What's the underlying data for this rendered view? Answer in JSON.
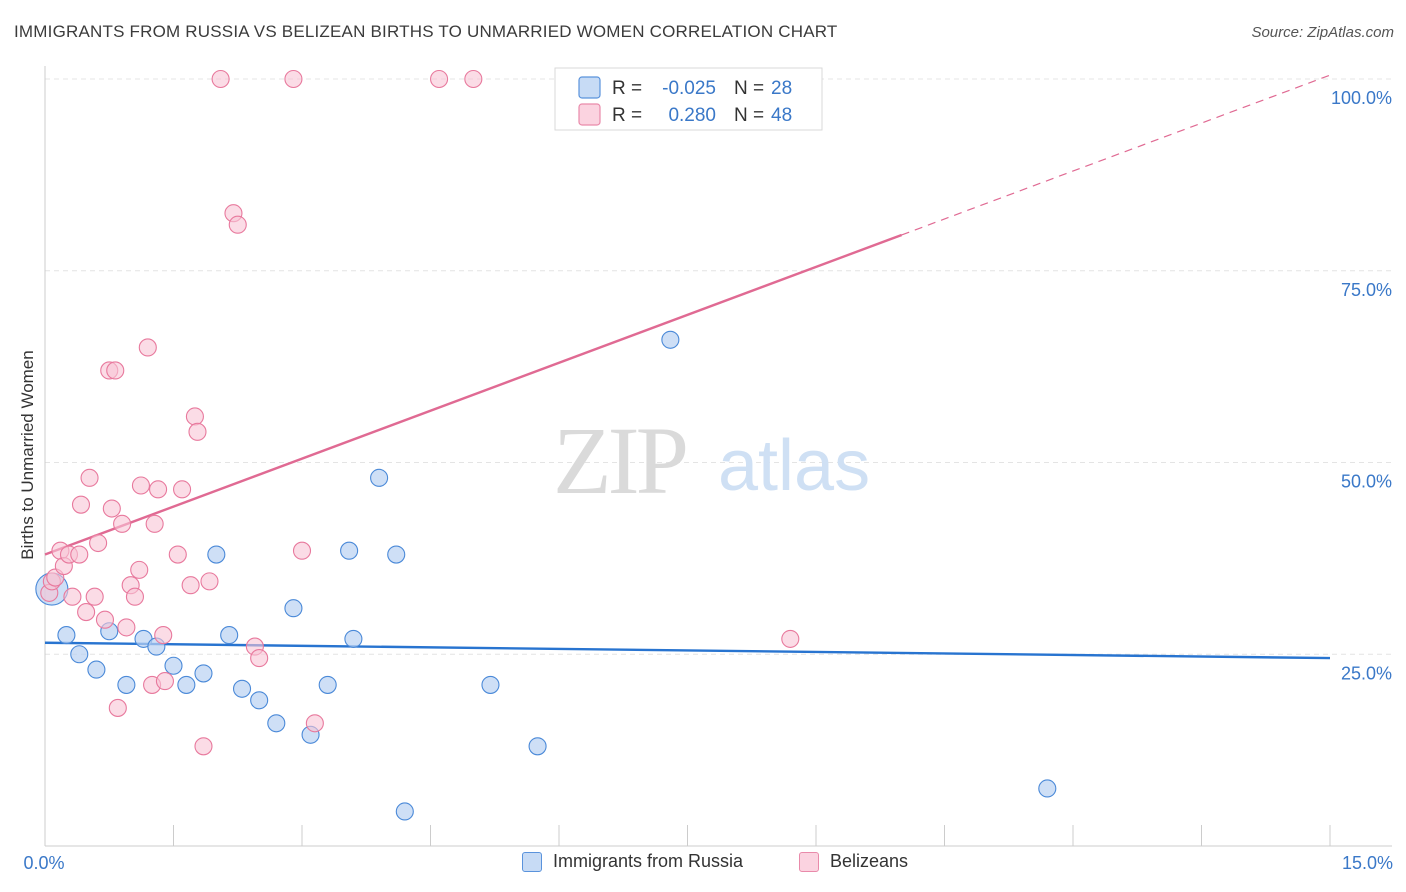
{
  "header": {
    "title": "IMMIGRANTS FROM RUSSIA VS BELIZEAN BIRTHS TO UNMARRIED WOMEN CORRELATION CHART",
    "source": "Source: ZipAtlas.com"
  },
  "watermark": {
    "zip": "ZIP",
    "atlas": "atlas"
  },
  "colors": {
    "blue": "#4a89d8",
    "blue_fill": "#b9d2f2",
    "blue_line": "#2874d0",
    "pink": "#e8799d",
    "pink_fill": "#f8c4d5",
    "pink_line": "#e06a93",
    "axis_label": "#3a78c8",
    "grid": "#e3e3e3"
  },
  "legend_box": {
    "rows": [
      {
        "r_label": "R =",
        "r_value": "-0.025",
        "n_label": "N =",
        "n_value": "28"
      },
      {
        "r_label": "R =",
        "r_value": "0.280",
        "n_label": "N =",
        "n_value": "48"
      }
    ]
  },
  "legend_bottom": {
    "items": [
      {
        "label": "Immigrants from Russia"
      },
      {
        "label": "Belizeans"
      }
    ]
  },
  "chart_data": {
    "type": "scatter",
    "title": "IMMIGRANTS FROM RUSSIA VS BELIZEAN BIRTHS TO UNMARRIED WOMEN CORRELATION CHART",
    "xlabel": "",
    "ylabel": "Births to Unmarried Women",
    "xlim": [
      0,
      15
    ],
    "ylim": [
      0,
      100
    ],
    "x_tick_labels": [
      "0.0%",
      "15.0%"
    ],
    "y_ticks": [
      25,
      50,
      75,
      100
    ],
    "y_tick_labels": [
      "25.0%",
      "50.0%",
      "75.0%",
      "100.0%"
    ],
    "grid": true,
    "series": [
      {
        "name": "Immigrants from Russia",
        "r": -0.025,
        "n": 28,
        "trend": {
          "x0": 0,
          "y0": 26.5,
          "x1": 15,
          "y1": 24.5,
          "dashed_from": null
        },
        "points": [
          {
            "x": 0.08,
            "y": 33.5,
            "big": true
          },
          {
            "x": 0.25,
            "y": 27.5
          },
          {
            "x": 0.4,
            "y": 25.0
          },
          {
            "x": 0.6,
            "y": 23.0
          },
          {
            "x": 0.75,
            "y": 28.0
          },
          {
            "x": 0.95,
            "y": 21.0
          },
          {
            "x": 1.15,
            "y": 27.0
          },
          {
            "x": 1.3,
            "y": 26.0
          },
          {
            "x": 1.5,
            "y": 23.5
          },
          {
            "x": 1.65,
            "y": 21.0
          },
          {
            "x": 1.85,
            "y": 22.5
          },
          {
            "x": 2.0,
            "y": 38.0
          },
          {
            "x": 2.15,
            "y": 27.5
          },
          {
            "x": 2.3,
            "y": 20.5
          },
          {
            "x": 2.5,
            "y": 19.0
          },
          {
            "x": 2.7,
            "y": 16.0
          },
          {
            "x": 2.9,
            "y": 31.0
          },
          {
            "x": 3.1,
            "y": 14.5
          },
          {
            "x": 3.3,
            "y": 21.0
          },
          {
            "x": 3.55,
            "y": 38.5
          },
          {
            "x": 3.6,
            "y": 27.0
          },
          {
            "x": 3.9,
            "y": 48.0
          },
          {
            "x": 4.1,
            "y": 38.0
          },
          {
            "x": 4.2,
            "y": 4.5
          },
          {
            "x": 5.2,
            "y": 21.0
          },
          {
            "x": 5.75,
            "y": 13.0
          },
          {
            "x": 7.3,
            "y": 66.0
          },
          {
            "x": 11.7,
            "y": 7.5
          }
        ]
      },
      {
        "name": "Belizeans",
        "r": 0.28,
        "n": 48,
        "trend": {
          "x0": 0,
          "y0": 38.0,
          "x1": 15,
          "y1": 100.5,
          "dashed_from": 10.0
        },
        "points": [
          {
            "x": 0.05,
            "y": 33.0
          },
          {
            "x": 0.08,
            "y": 34.5
          },
          {
            "x": 0.12,
            "y": 35.0
          },
          {
            "x": 0.18,
            "y": 38.5
          },
          {
            "x": 0.22,
            "y": 36.5
          },
          {
            "x": 0.28,
            "y": 38.0
          },
          {
            "x": 0.32,
            "y": 32.5
          },
          {
            "x": 0.4,
            "y": 38.0
          },
          {
            "x": 0.42,
            "y": 44.5
          },
          {
            "x": 0.48,
            "y": 30.5
          },
          {
            "x": 0.52,
            "y": 48.0
          },
          {
            "x": 0.58,
            "y": 32.5
          },
          {
            "x": 0.62,
            "y": 39.5
          },
          {
            "x": 0.7,
            "y": 29.5
          },
          {
            "x": 0.75,
            "y": 62.0
          },
          {
            "x": 0.78,
            "y": 44.0
          },
          {
            "x": 0.82,
            "y": 62.0
          },
          {
            "x": 0.85,
            "y": 18.0
          },
          {
            "x": 0.9,
            "y": 42.0
          },
          {
            "x": 0.95,
            "y": 28.5
          },
          {
            "x": 1.0,
            "y": 34.0
          },
          {
            "x": 1.05,
            "y": 32.5
          },
          {
            "x": 1.1,
            "y": 36.0
          },
          {
            "x": 1.12,
            "y": 47.0
          },
          {
            "x": 1.2,
            "y": 65.0
          },
          {
            "x": 1.25,
            "y": 21.0
          },
          {
            "x": 1.28,
            "y": 42.0
          },
          {
            "x": 1.32,
            "y": 46.5
          },
          {
            "x": 1.38,
            "y": 27.5
          },
          {
            "x": 1.4,
            "y": 21.5
          },
          {
            "x": 1.55,
            "y": 38.0
          },
          {
            "x": 1.6,
            "y": 46.5
          },
          {
            "x": 1.7,
            "y": 34.0
          },
          {
            "x": 1.75,
            "y": 56.0
          },
          {
            "x": 1.78,
            "y": 54.0
          },
          {
            "x": 1.85,
            "y": 13.0
          },
          {
            "x": 1.92,
            "y": 34.5
          },
          {
            "x": 2.05,
            "y": 100.0
          },
          {
            "x": 2.2,
            "y": 82.5
          },
          {
            "x": 2.25,
            "y": 81.0
          },
          {
            "x": 2.45,
            "y": 26.0
          },
          {
            "x": 2.5,
            "y": 24.5
          },
          {
            "x": 2.9,
            "y": 100.0
          },
          {
            "x": 3.0,
            "y": 38.5
          },
          {
            "x": 3.15,
            "y": 16.0
          },
          {
            "x": 4.6,
            "y": 100.0
          },
          {
            "x": 5.0,
            "y": 100.0
          },
          {
            "x": 8.7,
            "y": 27.0
          }
        ]
      }
    ]
  }
}
